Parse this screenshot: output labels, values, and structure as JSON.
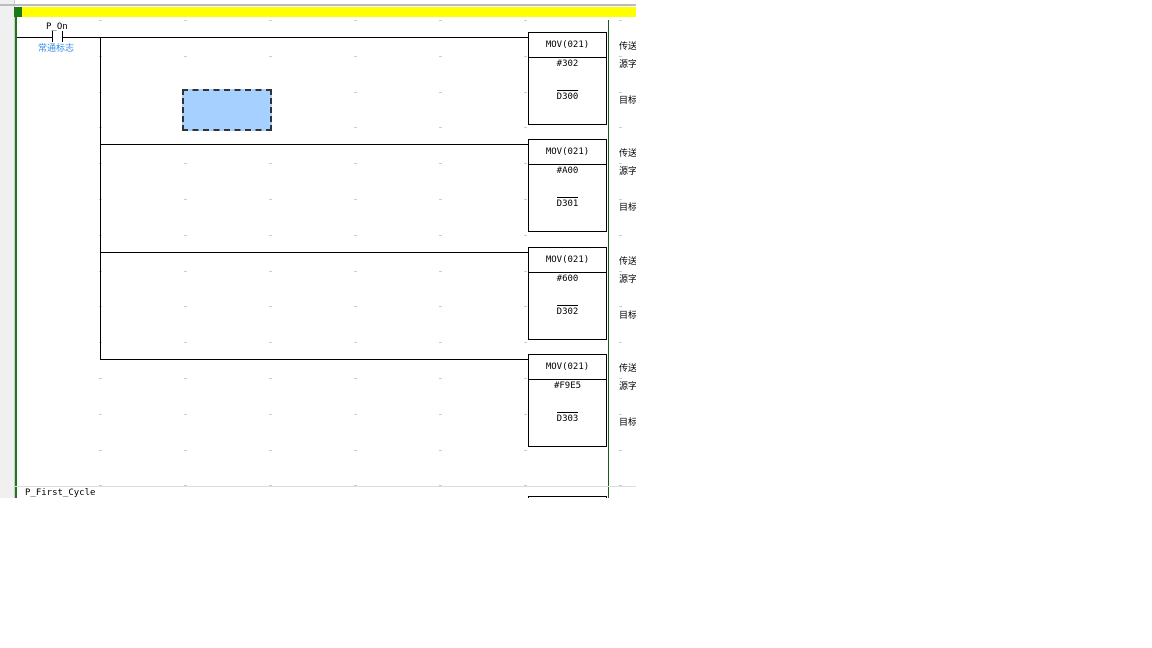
{
  "colors": {
    "header_bar": "#ffff00",
    "power_rail": "#1a7a1a",
    "selection": "#a6d0ff"
  },
  "rung1": {
    "contact": {
      "name": "P_On",
      "comment": "常通标志",
      "icon": "normally-open-contact-icon"
    },
    "instructions": [
      {
        "mnemonic": "MOV(021)",
        "source": "#302",
        "dest": "D300",
        "comments": [
          "传送",
          "源字",
          "目标"
        ]
      },
      {
        "mnemonic": "MOV(021)",
        "source": "#A00",
        "dest": "D301",
        "comments": [
          "传送",
          "源字",
          "目标"
        ]
      },
      {
        "mnemonic": "MOV(021)",
        "source": "#600",
        "dest": "D302",
        "comments": [
          "传送",
          "源字",
          "目标"
        ]
      },
      {
        "mnemonic": "MOV(021)",
        "source": "#F9E5",
        "dest": "D303",
        "comments": [
          "传送",
          "源字",
          "目标"
        ]
      }
    ]
  },
  "rung2": {
    "contact": {
      "name": "P_First_Cycle"
    }
  }
}
